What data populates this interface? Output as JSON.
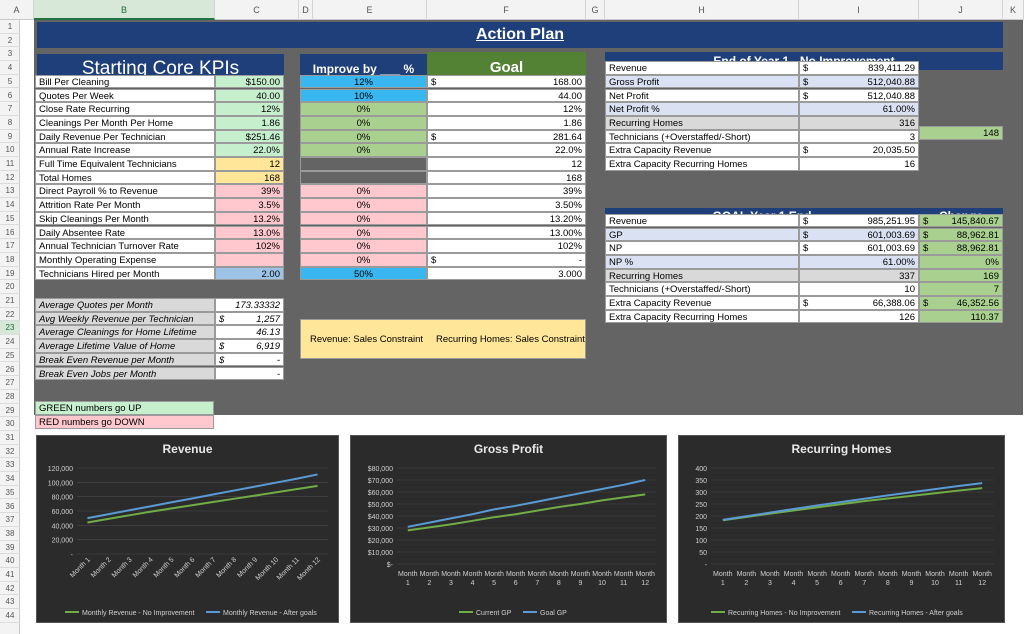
{
  "sheet": {
    "columns": [
      "A",
      "B",
      "C",
      "D",
      "E",
      "F",
      "G",
      "H",
      "I",
      "J",
      "K"
    ],
    "rows": [
      "1",
      "2",
      "3",
      "4",
      "5",
      "6",
      "7",
      "8",
      "9",
      "10",
      "11",
      "12",
      "13",
      "14",
      "15",
      "16",
      "17",
      "18",
      "19",
      "20",
      "21",
      "22",
      "23",
      "24",
      "25",
      "26",
      "27",
      "28",
      "29",
      "30",
      "31",
      "32",
      "33",
      "34",
      "35",
      "36",
      "37",
      "38",
      "39",
      "40",
      "41",
      "42",
      "43",
      "44"
    ],
    "selected_column": "B",
    "selected_row": "23"
  },
  "title": "Action Plan",
  "kpi": {
    "header": "Starting Core KPIs",
    "rows": [
      {
        "label": "Bill Per Cleaning",
        "value": "$150.00",
        "color": "#c6efce"
      },
      {
        "label": "Quotes Per Week",
        "value": "40.00",
        "color": "#c6efce"
      },
      {
        "label": "Close Rate Recurring",
        "value": "12%",
        "color": "#c6efce"
      },
      {
        "label": "Cleanings Per Month Per Home",
        "value": "1.86",
        "color": "#c6efce"
      },
      {
        "label": "Daily Revenue Per Technician",
        "value": "$251.46",
        "color": "#c6efce"
      },
      {
        "label": "Annual Rate Increase",
        "value": "22.0%",
        "color": "#c6efce"
      },
      {
        "label": "Full Time Equivalent Technicians",
        "value": "12",
        "color": "#ffe699"
      },
      {
        "label": "Total Homes",
        "value": "168",
        "color": "#ffe699"
      },
      {
        "label": "Direct Payroll % to Revenue",
        "value": "39%",
        "color": "#ffc7ce"
      },
      {
        "label": "Attrition Rate Per Month",
        "value": "3.5%",
        "color": "#ffc7ce"
      },
      {
        "label": "Skip Cleanings Per Month",
        "value": "13.2%",
        "color": "#ffc7ce"
      },
      {
        "label": "Daily Absentee Rate",
        "value": "13.0%",
        "color": "#ffc7ce"
      },
      {
        "label": "Annual Technician Turnover Rate",
        "value": "102%",
        "color": "#ffc7ce"
      },
      {
        "label": "Monthly Operating Expense",
        "value": "",
        "color": "#ffc7ce"
      },
      {
        "label": "Technicians Hired per Month",
        "value": "2.00",
        "color": "#9dc3e6"
      }
    ]
  },
  "improve": {
    "header": "Improve by ___ %",
    "rows": [
      {
        "value": "12%",
        "color": "#37b6f0"
      },
      {
        "value": "10%",
        "color": "#37b6f0"
      },
      {
        "value": "0%",
        "color": "#a9d08e"
      },
      {
        "value": "0%",
        "color": "#a9d08e"
      },
      {
        "value": "0%",
        "color": "#a9d08e"
      },
      {
        "value": "0%",
        "color": "#a9d08e"
      },
      {
        "value": "",
        "color": "#646464"
      },
      {
        "value": "",
        "color": "#646464"
      },
      {
        "value": "0%",
        "color": "#ffc7ce"
      },
      {
        "value": "0%",
        "color": "#ffc7ce"
      },
      {
        "value": "0%",
        "color": "#ffc7ce"
      },
      {
        "value": "0%",
        "color": "#ffc7ce"
      },
      {
        "value": "0%",
        "color": "#ffc7ce"
      },
      {
        "value": "0%",
        "color": "#ffc7ce"
      },
      {
        "value": "50%",
        "color": "#37b6f0"
      }
    ]
  },
  "goal": {
    "header": "Goal",
    "rows": [
      {
        "cur": "$",
        "value": "168.00"
      },
      {
        "cur": "",
        "value": "44.00"
      },
      {
        "cur": "",
        "value": "12%"
      },
      {
        "cur": "",
        "value": "1.86"
      },
      {
        "cur": "$",
        "value": "281.64"
      },
      {
        "cur": "",
        "value": "22.0%"
      },
      {
        "cur": "",
        "value": "12"
      },
      {
        "cur": "",
        "value": "168"
      },
      {
        "cur": "",
        "value": "39%"
      },
      {
        "cur": "",
        "value": "3.50%"
      },
      {
        "cur": "",
        "value": "13.20%"
      },
      {
        "cur": "",
        "value": "13.00%"
      },
      {
        "cur": "",
        "value": "102%"
      },
      {
        "cur": "$",
        "value": "-"
      },
      {
        "cur": "",
        "value": "3.000"
      }
    ]
  },
  "year1": {
    "header": "End of Year 1 - No Improvement",
    "rows": [
      {
        "label": "Revenue",
        "cur": "$",
        "value": "839,411.29",
        "color": "#ffffff"
      },
      {
        "label": "Gross Profit",
        "cur": "$",
        "value": "512,040.88",
        "color": "#d9e1f2"
      },
      {
        "label": "Net Profit",
        "cur": "$",
        "value": "512,040.88",
        "color": "#ffffff"
      },
      {
        "label": "Net Profit %",
        "cur": "",
        "value": "61.00%",
        "color": "#d9e1f2"
      },
      {
        "label": "Recurring Homes",
        "cur": "",
        "value": "316",
        "color": "#d9d9d9"
      },
      {
        "label": "Technicians (+Overstaffed/-Short)",
        "cur": "",
        "value": "3",
        "color": "#ffffff"
      },
      {
        "label": "Extra Capacity Revenue",
        "cur": "$",
        "value": "20,035.50",
        "color": "#ffffff"
      },
      {
        "label": "Extra Capacity Recurring Homes",
        "cur": "",
        "value": "16",
        "color": "#ffffff"
      }
    ],
    "side_value": "148"
  },
  "goal_year1": {
    "header": "GOAL Year 1 End",
    "change_header": "Change",
    "rows": [
      {
        "label": "Revenue",
        "cur": "$",
        "value": "985,251.95",
        "ccur": "$",
        "change": "145,840.67",
        "color": "#ffffff"
      },
      {
        "label": "GP",
        "cur": "$",
        "value": "601,003.69",
        "ccur": "$",
        "change": "88,962.81",
        "color": "#d9e1f2"
      },
      {
        "label": "NP",
        "cur": "$",
        "value": "601,003.69",
        "ccur": "$",
        "change": "88,962.81",
        "color": "#ffffff"
      },
      {
        "label": "NP %",
        "cur": "",
        "value": "61.00%",
        "ccur": "",
        "change": "0%",
        "color": "#d9e1f2"
      },
      {
        "label": "Recurring Homes",
        "cur": "",
        "value": "337",
        "ccur": "",
        "change": "169",
        "color": "#d9d9d9"
      },
      {
        "label": "Technicians (+Overstaffed/-Short)",
        "cur": "",
        "value": "10",
        "ccur": "",
        "change": "7",
        "color": "#ffffff"
      },
      {
        "label": "Extra Capacity Revenue",
        "cur": "$",
        "value": "66,388.06",
        "ccur": "$",
        "change": "46,352.56",
        "color": "#ffffff"
      },
      {
        "label": "Extra Capacity Recurring Homes",
        "cur": "",
        "value": "126",
        "ccur": "",
        "change": "110.37",
        "color": "#ffffff"
      }
    ]
  },
  "averages": [
    {
      "label": "Average Quotes per Month",
      "cur": "",
      "value": "173.33332"
    },
    {
      "label": "Avg Weekly Revenue per Technician",
      "cur": "$",
      "value": "1,257"
    },
    {
      "label": "Average Cleanings for Home Lifetime",
      "cur": "",
      "value": "46.13"
    },
    {
      "label": "Average Lifetime Value of Home",
      "cur": "$",
      "value": "6,919"
    },
    {
      "label": "Break Even Revenue per Month",
      "cur": "$",
      "value": "-"
    },
    {
      "label": "Break Even Jobs per Month",
      "cur": "",
      "value": "-"
    }
  ],
  "constraint": {
    "revenue": "Revenue: Sales Constraint",
    "homes": "Recurring Homes: Sales Constraint"
  },
  "legend_notes": {
    "green": "GREEN numbers go UP",
    "red": "RED numbers go DOWN"
  },
  "colors": {
    "green_series": "#70ad47",
    "blue_series": "#5b9bd5",
    "header_blue": "#1f3f7a",
    "goal_green": "#548235"
  },
  "chart_data": [
    {
      "type": "line",
      "title": "Revenue",
      "categories": [
        "Month 1",
        "Month 2",
        "Month 3",
        "Month 4",
        "Month 5",
        "Month 6",
        "Month 7",
        "Month 8",
        "Month 9",
        "Month 10",
        "Month 11",
        "Month 12"
      ],
      "yticks": [
        "120,000",
        "100,000",
        "80,000",
        "60,000",
        "40,000",
        "20,000",
        "-"
      ],
      "ylim": [
        0,
        120000
      ],
      "series": [
        {
          "name": "Monthly Revenue - No Improvement",
          "color": "#70ad47",
          "values": [
            44000,
            49000,
            54000,
            59000,
            63500,
            68000,
            72500,
            77000,
            81500,
            86000,
            90500,
            95000
          ]
        },
        {
          "name": "Monthly Revenue - After goals",
          "color": "#5b9bd5",
          "values": [
            50000,
            55500,
            61000,
            66500,
            72000,
            77500,
            83000,
            88500,
            94000,
            99500,
            105000,
            111000
          ]
        }
      ]
    },
    {
      "type": "line",
      "title": "Gross Profit",
      "categories": [
        "Month 1",
        "Month 2",
        "Month 3",
        "Month 4",
        "Month 5",
        "Month 6",
        "Month 7",
        "Month 8",
        "Month 9",
        "Month 10",
        "Month 11",
        "Month 12"
      ],
      "yticks": [
        "$80,000",
        "$70,000",
        "$60,000",
        "$50,000",
        "$40,000",
        "$30,000",
        "$20,000",
        "$10,000",
        "$-"
      ],
      "ylim": [
        0,
        80000
      ],
      "series": [
        {
          "name": "Current GP",
          "color": "#70ad47",
          "values": [
            28000,
            30500,
            33000,
            36000,
            39000,
            41500,
            44500,
            47500,
            50000,
            53000,
            55500,
            58000
          ]
        },
        {
          "name": "Goal GP",
          "color": "#5b9bd5",
          "values": [
            31000,
            34500,
            38000,
            41500,
            45500,
            48500,
            52000,
            55500,
            59000,
            62500,
            66000,
            70000
          ]
        }
      ]
    },
    {
      "type": "line",
      "title": "Recurring Homes",
      "categories": [
        "Month 1",
        "Month 2",
        "Month 3",
        "Month 4",
        "Month 5",
        "Month 6",
        "Month 7",
        "Month 8",
        "Month 9",
        "Month 10",
        "Month 11",
        "Month 12"
      ],
      "yticks": [
        "400",
        "350",
        "300",
        "250",
        "200",
        "150",
        "100",
        "50",
        "-"
      ],
      "ylim": [
        0,
        400
      ],
      "series": [
        {
          "name": "Recurring Homes - No Improvement",
          "color": "#70ad47",
          "values": [
            182,
            196,
            210,
            223,
            236,
            249,
            262,
            273,
            284,
            295,
            306,
            316
          ]
        },
        {
          "name": "Recurring Homes - After goals",
          "color": "#5b9bd5",
          "values": [
            184,
            199,
            214,
            229,
            244,
            258,
            272,
            286,
            299,
            312,
            325,
            337
          ]
        }
      ]
    }
  ]
}
